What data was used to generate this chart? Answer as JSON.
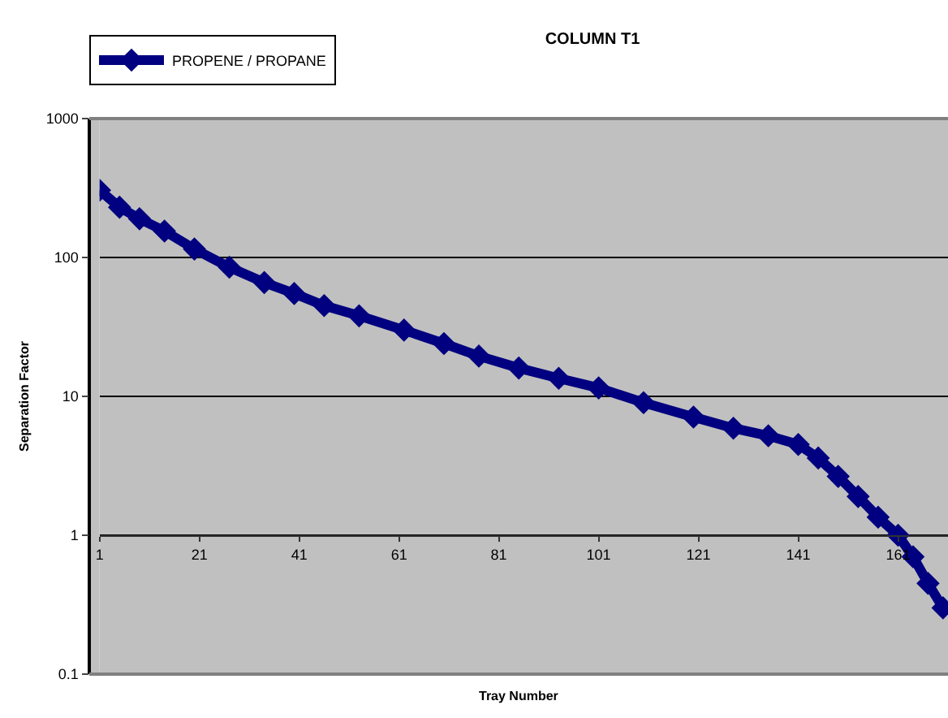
{
  "chart_data": {
    "type": "line",
    "title": "COLUMN T1",
    "xlabel": "Tray Number",
    "ylabel": "Separation Factor",
    "x": [
      1,
      5,
      9,
      14,
      20,
      27,
      34,
      40,
      46,
      53,
      62,
      70,
      77,
      85,
      93,
      101,
      110,
      120,
      128,
      135,
      141,
      145,
      149,
      153,
      157,
      161,
      164,
      167,
      170
    ],
    "series": [
      {
        "name": "PROPENE / PROPANE",
        "color": "#000080",
        "values": [
          305,
          230,
          190,
          155,
          115,
          85,
          66,
          55,
          45,
          38,
          30,
          24,
          19.5,
          16,
          13.5,
          11.5,
          9,
          7.1,
          5.9,
          5.2,
          4.5,
          3.6,
          2.65,
          1.9,
          1.35,
          1.0,
          0.7,
          0.45,
          0.3
        ]
      }
    ],
    "xlim": [
      1,
      171
    ],
    "xticks": [
      1,
      21,
      41,
      61,
      81,
      101,
      121,
      141,
      161
    ],
    "ylim": [
      0.1,
      1000
    ],
    "yticks": [
      0.1,
      1,
      10,
      100,
      1000
    ],
    "log": "y",
    "grid": "y",
    "legend": "top left",
    "marker": "diamond",
    "line_style": "solid"
  }
}
